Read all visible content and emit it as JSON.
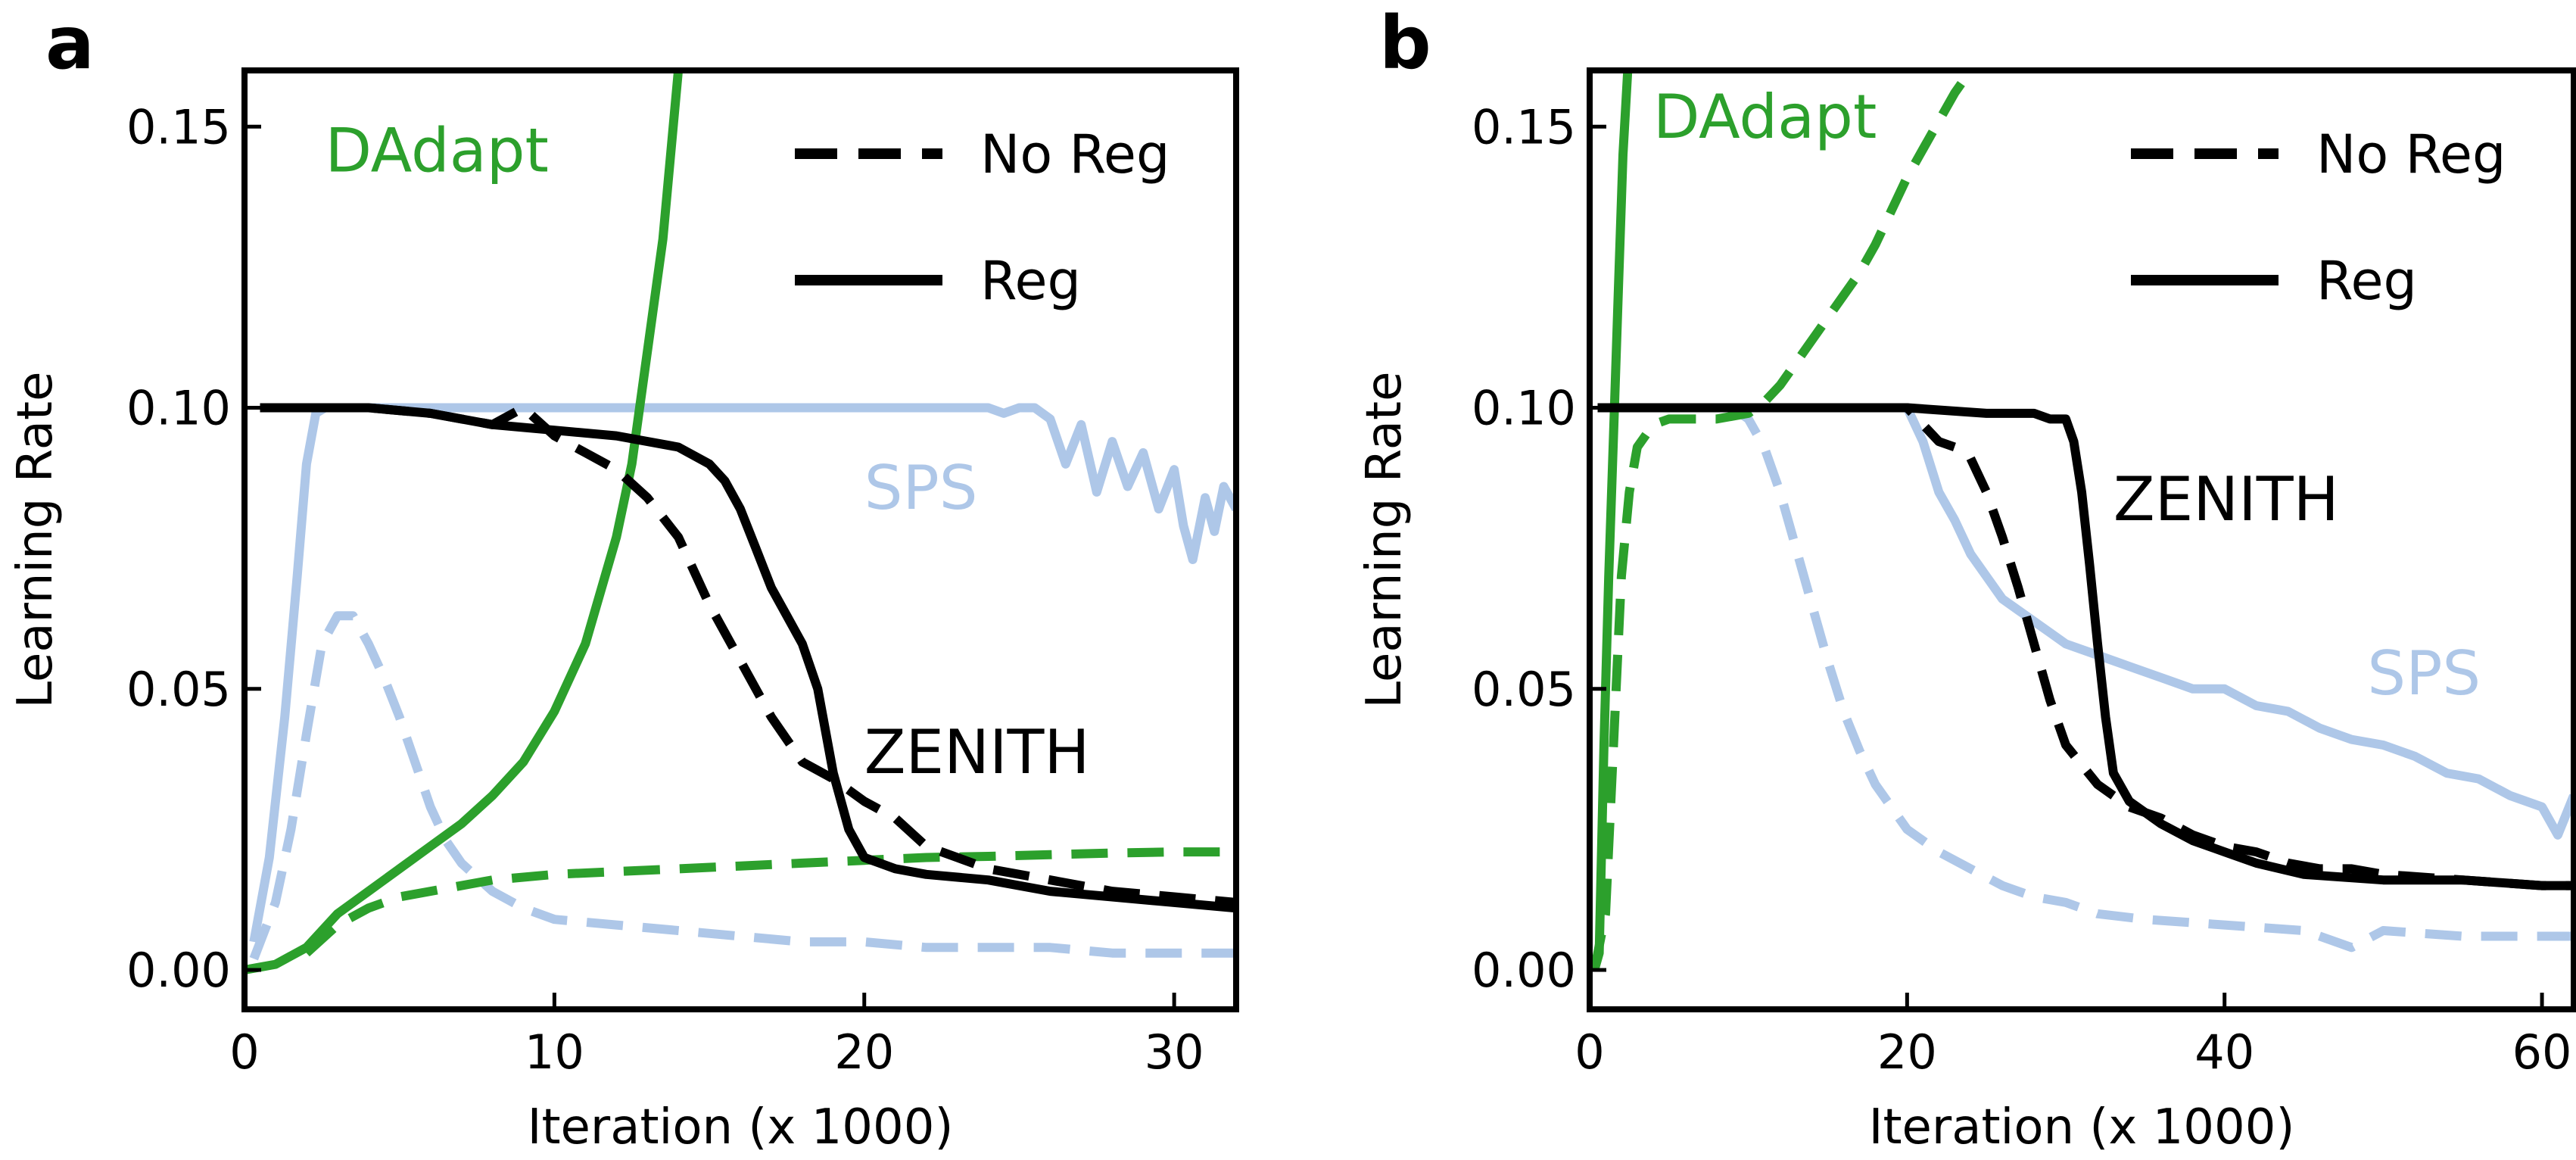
{
  "colors": {
    "dadapt": "#2ca02c",
    "sps": "#aec7e8",
    "zenith": "#000000"
  },
  "legend": {
    "no_reg": "No Reg",
    "reg": "Reg"
  },
  "chart_data": [
    {
      "type": "line",
      "panel": "a",
      "xlabel": "Iteration (x 1000)",
      "ylabel": "Learning Rate",
      "xlim": [
        0,
        32
      ],
      "ylim": [
        -0.007,
        0.16
      ],
      "xticks": [
        0,
        10,
        20,
        30
      ],
      "yticks": [
        0.0,
        0.05,
        0.1,
        0.15
      ],
      "yticklabels": [
        "0.00",
        "0.05",
        "0.10",
        "0.15"
      ],
      "legend_position": "top-right",
      "annotations": [
        {
          "text": "DAdapt",
          "x": 2.6,
          "y": 0.142,
          "color": "#2ca02c"
        },
        {
          "text": "SPS",
          "x": 20.0,
          "y": 0.082,
          "color": "#aec7e8"
        },
        {
          "text": "ZENITH",
          "x": 20.0,
          "y": 0.035,
          "color": "#000000"
        }
      ],
      "series": [
        {
          "method": "SPS",
          "style": "Reg",
          "color": "#aec7e8",
          "x": [
            0.3,
            0.8,
            1.3,
            1.7,
            2.0,
            2.3,
            2.6,
            5,
            10,
            15,
            20,
            23,
            24,
            24.5,
            25,
            25.5,
            26,
            26.5,
            27,
            27.5,
            28,
            28.5,
            29,
            29.5,
            30,
            30.3,
            30.6,
            31,
            31.3,
            31.6,
            32
          ],
          "y": [
            0.005,
            0.02,
            0.045,
            0.07,
            0.09,
            0.099,
            0.1,
            0.1,
            0.1,
            0.1,
            0.1,
            0.1,
            0.1,
            0.099,
            0.1,
            0.1,
            0.098,
            0.09,
            0.097,
            0.085,
            0.094,
            0.086,
            0.092,
            0.082,
            0.089,
            0.079,
            0.073,
            0.084,
            0.078,
            0.086,
            0.082
          ]
        },
        {
          "method": "SPS",
          "style": "No Reg",
          "color": "#aec7e8",
          "x": [
            0.3,
            1.0,
            1.5,
            2.0,
            2.5,
            3.0,
            3.5,
            4.0,
            4.5,
            5.0,
            5.5,
            6.0,
            6.5,
            7.0,
            8.0,
            9.0,
            10,
            12,
            14,
            16,
            18,
            20,
            22,
            24,
            26,
            28,
            30,
            32
          ],
          "y": [
            0.002,
            0.012,
            0.025,
            0.042,
            0.058,
            0.063,
            0.063,
            0.058,
            0.052,
            0.045,
            0.037,
            0.029,
            0.023,
            0.019,
            0.014,
            0.011,
            0.009,
            0.008,
            0.007,
            0.006,
            0.005,
            0.005,
            0.004,
            0.004,
            0.004,
            0.003,
            0.003,
            0.003
          ]
        },
        {
          "method": "DAdapt",
          "style": "Reg",
          "color": "#2ca02c",
          "x": [
            0,
            1,
            2,
            3,
            4,
            5,
            6,
            7,
            8,
            9,
            10,
            11,
            12,
            12.5,
            13,
            13.5,
            14
          ],
          "y": [
            0.0,
            0.001,
            0.004,
            0.01,
            0.014,
            0.018,
            0.022,
            0.026,
            0.031,
            0.037,
            0.046,
            0.058,
            0.077,
            0.09,
            0.11,
            0.13,
            0.16
          ]
        },
        {
          "method": "DAdapt",
          "style": "No Reg",
          "color": "#2ca02c",
          "x": [
            2,
            3,
            4,
            5,
            6,
            8,
            10,
            12,
            14,
            16,
            18,
            20,
            22,
            24,
            26,
            28,
            30,
            32
          ],
          "y": [
            0.003,
            0.008,
            0.011,
            0.013,
            0.014,
            0.016,
            0.017,
            0.0175,
            0.018,
            0.0185,
            0.019,
            0.0195,
            0.02,
            0.0202,
            0.0205,
            0.0208,
            0.021,
            0.021
          ]
        },
        {
          "method": "ZENITH",
          "style": "Reg",
          "color": "#000000",
          "x": [
            0.5,
            2,
            4,
            6,
            8,
            10,
            12,
            14,
            15,
            15.5,
            16,
            16.5,
            17,
            17.5,
            18,
            18.5,
            19,
            19.5,
            20,
            21,
            22,
            24,
            26,
            28,
            30,
            32
          ],
          "y": [
            0.1,
            0.1,
            0.1,
            0.099,
            0.097,
            0.096,
            0.095,
            0.093,
            0.09,
            0.087,
            0.082,
            0.075,
            0.068,
            0.063,
            0.058,
            0.05,
            0.035,
            0.025,
            0.02,
            0.018,
            0.017,
            0.016,
            0.014,
            0.013,
            0.012,
            0.011
          ]
        },
        {
          "method": "ZENITH",
          "style": "No Reg",
          "color": "#000000",
          "x": [
            0.5,
            2,
            4,
            6,
            8,
            9,
            10,
            11,
            12,
            13,
            14,
            15,
            16,
            17,
            18,
            19,
            20,
            21,
            22,
            23,
            24,
            26,
            28,
            30,
            32
          ],
          "y": [
            0.1,
            0.1,
            0.1,
            0.099,
            0.097,
            0.1,
            0.095,
            0.092,
            0.089,
            0.084,
            0.077,
            0.065,
            0.055,
            0.045,
            0.037,
            0.034,
            0.03,
            0.027,
            0.022,
            0.02,
            0.018,
            0.016,
            0.014,
            0.013,
            0.012
          ]
        }
      ]
    },
    {
      "type": "line",
      "panel": "b",
      "xlabel": "Iteration (x 1000)",
      "ylabel": "Learning Rate",
      "xlim": [
        0,
        62
      ],
      "ylim": [
        -0.007,
        0.16
      ],
      "xticks": [
        0,
        20,
        40,
        60
      ],
      "yticks": [
        0.0,
        0.05,
        0.1,
        0.15
      ],
      "yticklabels": [
        "0.00",
        "0.05",
        "0.10",
        "0.15"
      ],
      "legend_position": "top-right",
      "annotations": [
        {
          "text": "DAdapt",
          "x": 4.0,
          "y": 0.148,
          "color": "#2ca02c"
        },
        {
          "text": "SPS",
          "x": 49.0,
          "y": 0.049,
          "color": "#aec7e8"
        },
        {
          "text": "ZENITH",
          "x": 33.0,
          "y": 0.08,
          "color": "#000000"
        }
      ],
      "series": [
        {
          "method": "SPS",
          "style": "Reg",
          "color": "#aec7e8",
          "x": [
            2,
            5,
            8,
            10,
            12,
            14,
            16,
            18,
            20,
            21,
            22,
            23,
            24,
            25,
            26,
            27,
            28,
            29,
            30,
            32,
            34,
            36,
            38,
            40,
            42,
            44,
            46,
            48,
            50,
            52,
            54,
            56,
            58,
            60,
            61,
            62
          ],
          "y": [
            0.1,
            0.1,
            0.1,
            0.1,
            0.1,
            0.1,
            0.1,
            0.1,
            0.1,
            0.094,
            0.085,
            0.08,
            0.074,
            0.07,
            0.066,
            0.064,
            0.062,
            0.06,
            0.058,
            0.056,
            0.054,
            0.052,
            0.05,
            0.05,
            0.047,
            0.046,
            0.043,
            0.041,
            0.04,
            0.038,
            0.035,
            0.034,
            0.031,
            0.029,
            0.024,
            0.031
          ]
        },
        {
          "method": "SPS",
          "style": "No Reg",
          "color": "#aec7e8",
          "x": [
            9,
            10,
            11,
            12,
            13,
            14,
            15,
            16,
            17,
            18,
            19,
            20,
            22,
            24,
            26,
            28,
            30,
            32,
            35,
            40,
            45,
            48,
            50,
            55,
            60,
            62
          ],
          "y": [
            0.1,
            0.098,
            0.093,
            0.085,
            0.075,
            0.065,
            0.055,
            0.046,
            0.039,
            0.033,
            0.029,
            0.025,
            0.021,
            0.018,
            0.015,
            0.013,
            0.012,
            0.01,
            0.009,
            0.008,
            0.007,
            0.004,
            0.007,
            0.006,
            0.006,
            0.006
          ]
        },
        {
          "method": "DAdapt",
          "style": "Reg",
          "color": "#2ca02c",
          "x": [
            0.3,
            0.6,
            0.9,
            1.2,
            1.5,
            1.8,
            2.1,
            2.4
          ],
          "y": [
            0.0,
            0.003,
            0.04,
            0.07,
            0.095,
            0.12,
            0.145,
            0.16
          ]
        },
        {
          "method": "DAdapt",
          "style": "No Reg",
          "color": "#2ca02c",
          "x": [
            0.3,
            1,
            1.5,
            2,
            2.5,
            3,
            4,
            5,
            6,
            8,
            10,
            11,
            12,
            13,
            14,
            15,
            16,
            17,
            18,
            19,
            20,
            21,
            22,
            23,
            24
          ],
          "y": [
            0.0,
            0.01,
            0.04,
            0.07,
            0.085,
            0.093,
            0.097,
            0.098,
            0.098,
            0.098,
            0.099,
            0.101,
            0.104,
            0.108,
            0.112,
            0.116,
            0.12,
            0.124,
            0.129,
            0.135,
            0.141,
            0.146,
            0.151,
            0.156,
            0.16
          ]
        },
        {
          "method": "ZENITH",
          "style": "Reg",
          "color": "#000000",
          "x": [
            0.5,
            5,
            10,
            15,
            20,
            25,
            28,
            29,
            30,
            30.5,
            31,
            31.5,
            32,
            32.5,
            33,
            34,
            35,
            36,
            38,
            40,
            42,
            45,
            50,
            55,
            60,
            62
          ],
          "y": [
            0.1,
            0.1,
            0.1,
            0.1,
            0.1,
            0.099,
            0.099,
            0.098,
            0.098,
            0.094,
            0.085,
            0.072,
            0.058,
            0.045,
            0.035,
            0.03,
            0.028,
            0.026,
            0.023,
            0.021,
            0.019,
            0.017,
            0.016,
            0.016,
            0.015,
            0.015
          ]
        },
        {
          "method": "ZENITH",
          "style": "No Reg",
          "color": "#000000",
          "x": [
            0.5,
            5,
            10,
            15,
            20,
            21,
            22,
            23,
            24,
            25,
            26,
            27,
            28,
            29,
            30,
            32,
            34,
            36,
            38,
            40,
            42,
            44,
            46,
            48,
            50,
            55,
            60,
            62
          ],
          "y": [
            0.1,
            0.1,
            0.1,
            0.1,
            0.1,
            0.097,
            0.094,
            0.093,
            0.091,
            0.085,
            0.077,
            0.068,
            0.058,
            0.048,
            0.04,
            0.033,
            0.029,
            0.027,
            0.024,
            0.022,
            0.021,
            0.019,
            0.018,
            0.018,
            0.017,
            0.016,
            0.015,
            0.015
          ]
        }
      ]
    }
  ]
}
